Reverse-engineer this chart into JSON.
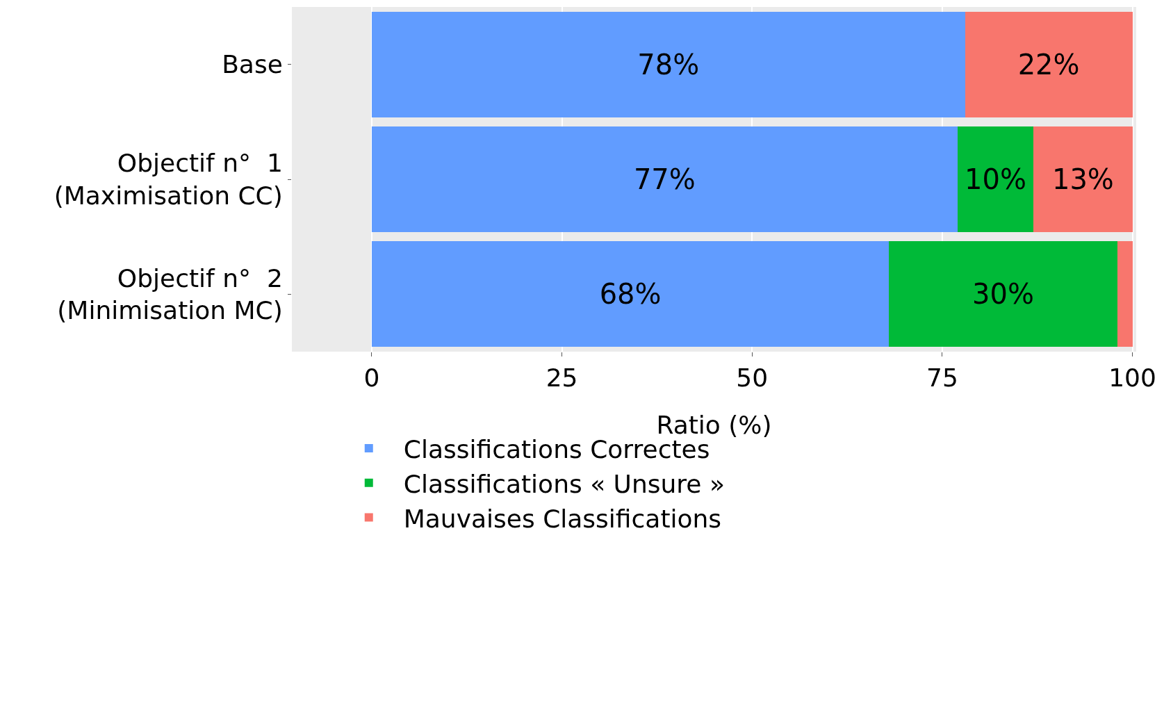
{
  "chart_data": {
    "type": "bar",
    "orientation": "horizontal",
    "stacked": true,
    "xlabel": "Ratio (%)",
    "categories": [
      "Base",
      "Objectif n°  1\n(Maximisation CC)",
      "Objectif n°  2\n(Minimisation MC)"
    ],
    "series": [
      {
        "name": "Classifications Correctes",
        "color": "#619cff",
        "values": [
          78,
          77,
          68
        ],
        "value_labels": [
          "78%",
          "77%",
          "68%"
        ]
      },
      {
        "name": "Classifications « Unsure »",
        "color": "#00ba38",
        "values": [
          0,
          10,
          30
        ],
        "value_labels": [
          null,
          "10%",
          "30%"
        ]
      },
      {
        "name": "Mauvaises Classifications",
        "color": "#f8766d",
        "values": [
          22,
          13,
          2
        ],
        "value_labels": [
          "22%",
          "13%",
          null
        ]
      }
    ],
    "xlim": [
      -10.5,
      100.5
    ],
    "xticks": [
      0,
      25,
      50,
      75,
      100
    ],
    "grid": "x",
    "legend": "bottom"
  }
}
